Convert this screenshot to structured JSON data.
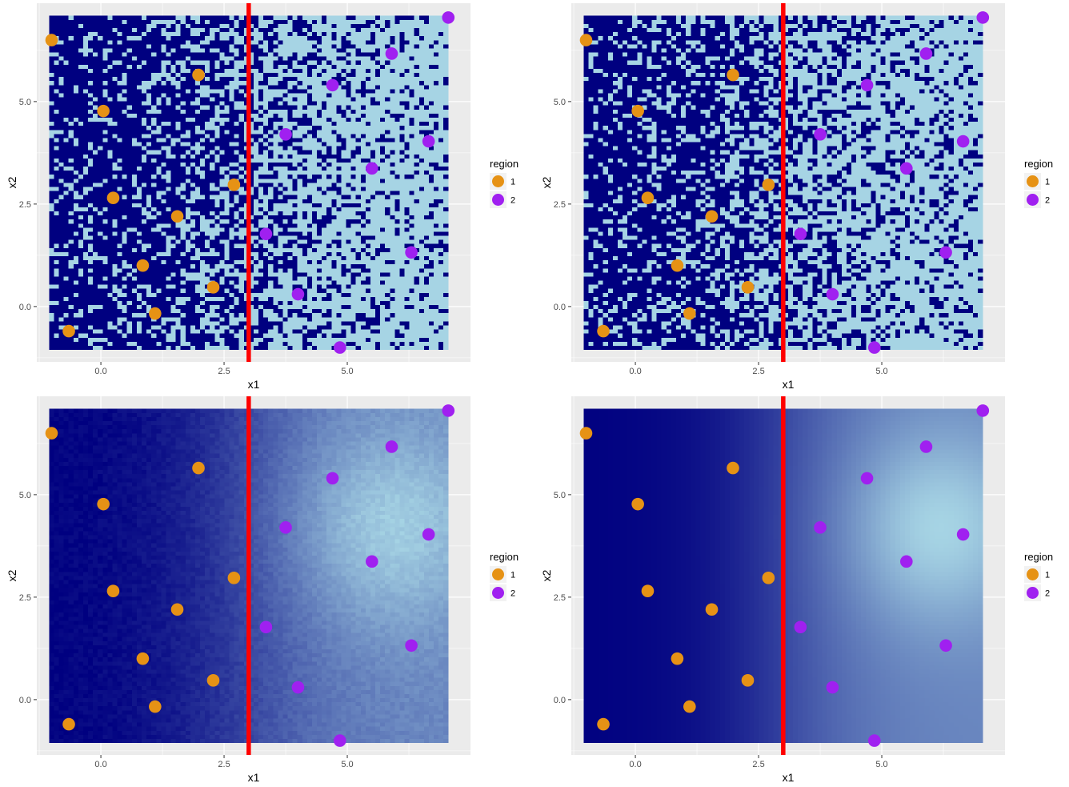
{
  "chart_data": [
    {
      "type": "scatter",
      "panel": "top-left",
      "background_fill": "binary-noisy",
      "xlabel": "x1",
      "ylabel": "x2",
      "x_ticks": [
        "0.0",
        "2.5",
        "5.0"
      ],
      "y_ticks": [
        "0.0",
        "2.5",
        "5.0"
      ],
      "legend_title": "region",
      "legend_labels": [
        "1",
        "2"
      ],
      "vline_x": 3.0,
      "noise_seed": 7
    },
    {
      "type": "scatter",
      "panel": "top-right",
      "background_fill": "binary-noisy",
      "xlabel": "x1",
      "ylabel": "x2",
      "x_ticks": [
        "0.0",
        "2.5",
        "5.0"
      ],
      "y_ticks": [
        "0.0",
        "2.5",
        "5.0"
      ],
      "legend_title": "region",
      "legend_labels": [
        "1",
        "2"
      ],
      "vline_x": 3.0,
      "noise_seed": 13
    },
    {
      "type": "scatter",
      "panel": "bottom-left",
      "background_fill": "gradient-noisy",
      "xlabel": "x1",
      "ylabel": "x2",
      "x_ticks": [
        "0.0",
        "2.5",
        "5.0"
      ],
      "y_ticks": [
        "0.0",
        "2.5",
        "5.0"
      ],
      "legend_title": "region",
      "legend_labels": [
        "1",
        "2"
      ],
      "vline_x": 3.0,
      "noise_seed": 21
    },
    {
      "type": "scatter",
      "panel": "bottom-right",
      "background_fill": "gradient-smooth",
      "xlabel": "x1",
      "ylabel": "x2",
      "x_ticks": [
        "0.0",
        "2.5",
        "5.0"
      ],
      "y_ticks": [
        "0.0",
        "2.5",
        "5.0"
      ],
      "legend_title": "region",
      "legend_labels": [
        "1",
        "2"
      ],
      "vline_x": 3.0,
      "noise_seed": 0
    }
  ],
  "points": [
    {
      "x": -1.0,
      "y": 6.5,
      "region": 1
    },
    {
      "x": 0.05,
      "y": 4.77,
      "region": 1
    },
    {
      "x": 1.98,
      "y": 5.65,
      "region": 1
    },
    {
      "x": 0.25,
      "y": 2.65,
      "region": 1
    },
    {
      "x": 1.55,
      "y": 2.2,
      "region": 1
    },
    {
      "x": 2.7,
      "y": 2.97,
      "region": 1
    },
    {
      "x": 0.85,
      "y": 1.0,
      "region": 1
    },
    {
      "x": 2.28,
      "y": 0.47,
      "region": 1
    },
    {
      "x": 1.1,
      "y": -0.17,
      "region": 1
    },
    {
      "x": -0.65,
      "y": -0.6,
      "region": 1
    },
    {
      "x": 7.05,
      "y": 7.05,
      "region": 2
    },
    {
      "x": 5.9,
      "y": 6.17,
      "region": 2
    },
    {
      "x": 4.7,
      "y": 5.4,
      "region": 2
    },
    {
      "x": 3.75,
      "y": 4.2,
      "region": 2
    },
    {
      "x": 6.65,
      "y": 4.03,
      "region": 2
    },
    {
      "x": 5.5,
      "y": 3.37,
      "region": 2
    },
    {
      "x": 3.35,
      "y": 1.77,
      "region": 2
    },
    {
      "x": 6.3,
      "y": 1.32,
      "region": 2
    },
    {
      "x": 4.0,
      "y": 0.3,
      "region": 2
    },
    {
      "x": 4.85,
      "y": -1.0,
      "region": 2
    }
  ],
  "colors": {
    "panel_bg": "#ebebeb",
    "grid": "#ffffff",
    "dark": "#000080",
    "light": "#a6d4e4",
    "region1": "#e69215",
    "region2": "#a020f0",
    "vline": "#ff0000",
    "legend_key_bg": "#f2f2f2"
  }
}
